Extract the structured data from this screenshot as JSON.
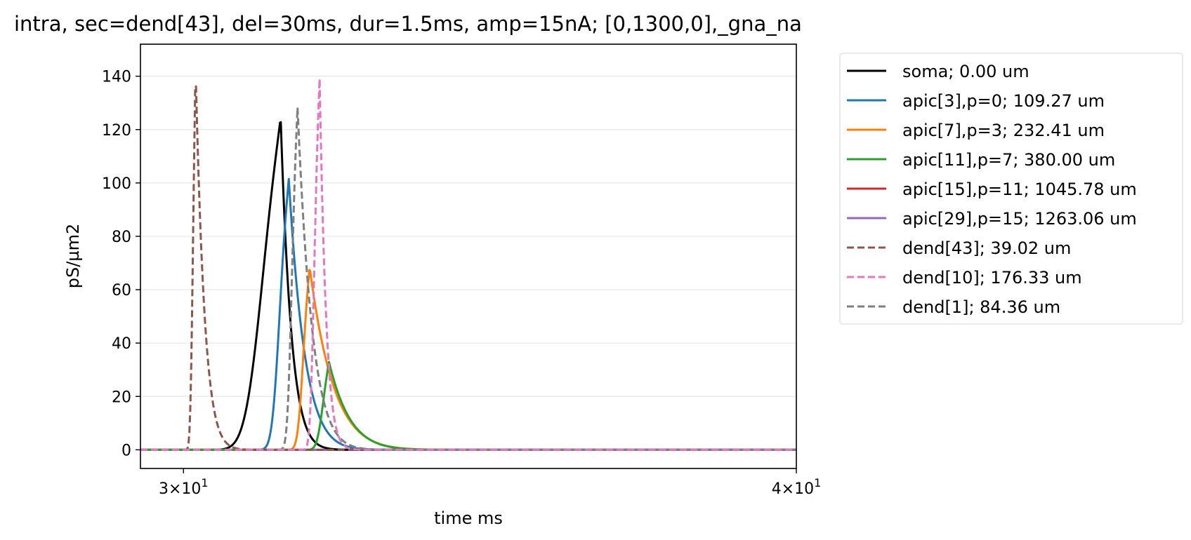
{
  "chart_data": {
    "type": "line",
    "title": "intra, sec=dend[43], del=30ms, dur=1.5ms, amp=15nA; [0,1300,0],_gna_na",
    "xlabel": "time ms",
    "ylabel": "pS/µm2",
    "xscale": "log",
    "xlim": [
      29.4,
      40
    ],
    "ylim": [
      -7,
      152
    ],
    "grid": "horizontal",
    "legend_position": "outside-right-top",
    "x_ticks": [
      {
        "value": 30,
        "label": "3 × 10^1",
        "mantissa": "3",
        "base": "10",
        "exponent": "1"
      },
      {
        "value": 40,
        "label": "4 × 10^1",
        "mantissa": "4",
        "base": "10",
        "exponent": "1"
      }
    ],
    "y_ticks": [
      0,
      20,
      40,
      60,
      80,
      100,
      120,
      140
    ],
    "series": [
      {
        "name": "soma; 0.00 um",
        "color": "#000000",
        "dash": "solid",
        "peak_x": 31.4,
        "peak_y": 124.5,
        "onset_x": 30.3,
        "rise": 0.3,
        "decay": 0.16
      },
      {
        "name": "apic[3],p=0; 109.27 um",
        "color": "#1f77b4",
        "dash": "solid",
        "peak_x": 31.52,
        "peak_y": 101.5,
        "onset_x": 30.9,
        "rise": 0.12,
        "decay": 0.24
      },
      {
        "name": "apic[7],p=3; 232.41 um",
        "color": "#ff7f0e",
        "dash": "solid",
        "peak_x": 31.83,
        "peak_y": 68.5,
        "onset_x": 31.4,
        "rise": 0.09,
        "decay": 0.36
      },
      {
        "name": "apic[11],p=7; 380.00 um",
        "color": "#2ca02c",
        "dash": "solid",
        "peak_x": 32.12,
        "peak_y": 33.0,
        "onset_x": 31.75,
        "rise": 0.11,
        "decay": 0.32
      },
      {
        "name": "apic[15],p=11; 1045.78 um",
        "color": "#d62728",
        "dash": "solid",
        "peak_x": null,
        "peak_y": 0.0
      },
      {
        "name": "apic[29],p=15; 1263.06 um",
        "color": "#9467bd",
        "dash": "solid",
        "peak_x": null,
        "peak_y": 0.0
      },
      {
        "name": "dend[43]; 39.02 um",
        "color": "#8c564b",
        "dash": "dashed",
        "peak_x": 30.17,
        "peak_y": 144.0,
        "onset_x": 30.02,
        "rise": 0.045,
        "decay": 0.13
      },
      {
        "name": "dend[10]; 176.33 um",
        "color": "#e377c2",
        "dash": "dashed",
        "peak_x": 31.98,
        "peak_y": 139.5,
        "onset_x": 31.6,
        "rise": 0.065,
        "decay": 0.1
      },
      {
        "name": "dend[1]; 84.36 um",
        "color": "#7f7f7f",
        "dash": "dashed",
        "peak_x": 31.65,
        "peak_y": 128.5,
        "onset_x": 31.25,
        "rise": 0.07,
        "decay": 0.22
      }
    ]
  }
}
